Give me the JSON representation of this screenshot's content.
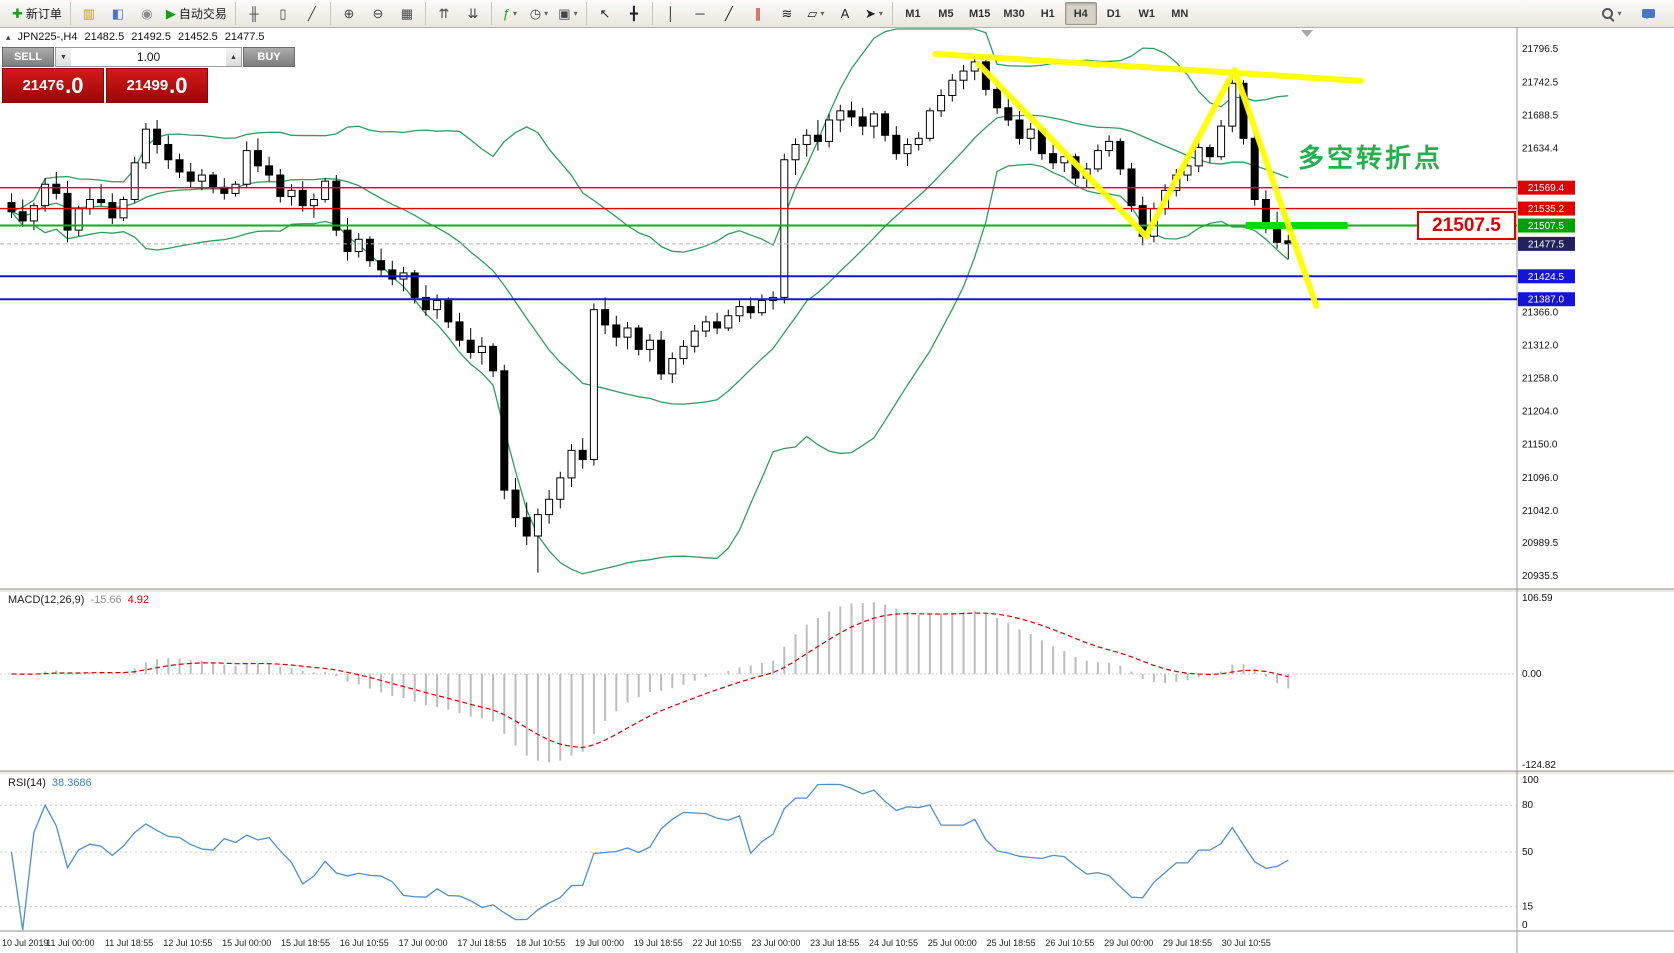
{
  "toolbar": {
    "groups": [
      {
        "items": [
          {
            "name": "new-order-button",
            "glyph": "✚",
            "color": "#18a018",
            "label": "新订单"
          }
        ]
      },
      {
        "items": [
          {
            "name": "charts-button",
            "glyph": "▥",
            "color": "#c8961e"
          },
          {
            "name": "profiles-button",
            "glyph": "◧",
            "color": "#4a76c8"
          },
          {
            "name": "alerts-button",
            "glyph": "◉",
            "color": "#8a8a8a"
          },
          {
            "name": "autotrading-button",
            "glyph": "▶",
            "color": "#18a018",
            "label": "自动交易"
          }
        ]
      },
      {
        "items": [
          {
            "name": "chart-bars-button",
            "glyph": "╫",
            "color": "#444"
          },
          {
            "name": "chart-candles-button",
            "glyph": "▯",
            "color": "#444"
          },
          {
            "name": "chart-line-button",
            "glyph": "╱",
            "color": "#444"
          }
        ]
      },
      {
        "items": [
          {
            "name": "zoom-in-button",
            "glyph": "⊕",
            "color": "#444"
          },
          {
            "name": "zoom-out-button",
            "glyph": "⊖",
            "color": "#444"
          },
          {
            "name": "tile-windows-button",
            "glyph": "▦",
            "color": "#444"
          }
        ]
      },
      {
        "items": [
          {
            "name": "arrange-up-button",
            "glyph": "⇈",
            "color": "#444"
          },
          {
            "name": "arrange-down-button",
            "glyph": "⇊",
            "color": "#444"
          }
        ]
      },
      {
        "items": [
          {
            "name": "indicators-button",
            "glyph": "ƒ",
            "color": "#18a018",
            "dropdown": true
          },
          {
            "name": "periods-button",
            "glyph": "◷",
            "color": "#444",
            "dropdown": true
          },
          {
            "name": "templates-button",
            "glyph": "▣",
            "color": "#444",
            "dropdown": true
          }
        ]
      },
      {
        "items": [
          {
            "name": "cursor-button",
            "glyph": "↖",
            "color": "#222"
          },
          {
            "name": "crosshair-button",
            "glyph": "╋",
            "color": "#222"
          }
        ]
      },
      {
        "items": [
          {
            "name": "vertical-line-button",
            "glyph": "│",
            "color": "#222"
          },
          {
            "name": "horizontal-line-button",
            "glyph": "─",
            "color": "#222"
          },
          {
            "name": "trendline-button",
            "glyph": "╱",
            "color": "#222"
          },
          {
            "name": "channel-button",
            "glyph": "∥",
            "color": "#b00000"
          },
          {
            "name": "fibonacci-button",
            "glyph": "≋",
            "color": "#222"
          },
          {
            "name": "shapes-button",
            "glyph": "▱",
            "color": "#222",
            "dropdown": true
          },
          {
            "name": "text-button",
            "glyph": "A",
            "color": "#222"
          },
          {
            "name": "arrows-button",
            "glyph": "➤",
            "color": "#222",
            "dropdown": true
          }
        ]
      }
    ],
    "timeframes": [
      "M1",
      "M5",
      "M15",
      "M30",
      "H1",
      "H4",
      "D1",
      "W1",
      "MN"
    ],
    "active_timeframe": "H4"
  },
  "chart_header": {
    "symbol_period": "JPN225-,H4",
    "open": "21482.5",
    "high": "21492.5",
    "low": "21452.5",
    "close": "21477.5"
  },
  "trade_panel": {
    "sell_label": "SELL",
    "buy_label": "BUY",
    "volume": "1.00",
    "sell_price_int": "21476",
    "sell_price_frac": ".0",
    "buy_price_int": "21499",
    "buy_price_frac": ".0"
  },
  "annotations": {
    "turning_point_text": "多空转折点",
    "price_box_label": "21507.5"
  },
  "chart_data": {
    "type": "candlestick",
    "title": "JPN225-,H4",
    "price_range": [
      20915,
      21832
    ],
    "y_axis_ticks": [
      21796.5,
      21742.5,
      21688.5,
      21634.4,
      21366.0,
      21312.0,
      21258.0,
      21204.0,
      21150.0,
      21096.0,
      21042.0,
      20989.5,
      20935.5
    ],
    "h_lines": [
      {
        "price": 21569.4,
        "color": "#e00000",
        "width": 1.4,
        "tag_color": "#e00000"
      },
      {
        "price": 21535.2,
        "color": "#e00000",
        "width": 1.4,
        "tag_color": "#e00000"
      },
      {
        "price": 21507.5,
        "color": "#00b400",
        "width": 2,
        "tag_color": "#00a000"
      },
      {
        "price": 21477.5,
        "color": "#b0b0b0",
        "width": 1,
        "dash": true,
        "tag_color": "#20215e"
      },
      {
        "price": 21424.5,
        "color": "#1515d8",
        "width": 2,
        "tag_color": "#1515d8"
      },
      {
        "price": 21387.0,
        "color": "#1515d8",
        "width": 2,
        "tag_color": "#1515d8"
      }
    ],
    "x_labels": [
      "10 Jul 2019",
      "11 Jul 00:00",
      "11 Jul 18:55",
      "12 Jul 10:55",
      "15 Jul 00:00",
      "15 Jul 18:55",
      "16 Jul 10:55",
      "17 Jul 00:00",
      "17 Jul 18:55",
      "18 Jul 10:55",
      "19 Jul 00:00",
      "19 Jul 18:55",
      "22 Jul 10:55",
      "23 Jul 00:00",
      "23 Jul 18:55",
      "24 Jul 10:55",
      "25 Jul 00:00",
      "25 Jul 18:55",
      "26 Jul 10:55",
      "29 Jul 00:00",
      "29 Jul 18:55",
      "30 Jul 10:55"
    ],
    "ohlc": [
      [
        21545,
        21560,
        21520,
        21530
      ],
      [
        21530,
        21550,
        21505,
        21515
      ],
      [
        21515,
        21545,
        21500,
        21540
      ],
      [
        21540,
        21585,
        21530,
        21575
      ],
      [
        21575,
        21595,
        21550,
        21560
      ],
      [
        21560,
        21580,
        21480,
        21500
      ],
      [
        21500,
        21540,
        21490,
        21535
      ],
      [
        21535,
        21570,
        21525,
        21550
      ],
      [
        21550,
        21575,
        21540,
        21545
      ],
      [
        21545,
        21560,
        21510,
        21520
      ],
      [
        21520,
        21555,
        21515,
        21550
      ],
      [
        21550,
        21620,
        21545,
        21610
      ],
      [
        21610,
        21675,
        21600,
        21665
      ],
      [
        21665,
        21680,
        21625,
        21640
      ],
      [
        21640,
        21655,
        21600,
        21615
      ],
      [
        21615,
        21625,
        21585,
        21595
      ],
      [
        21595,
        21610,
        21570,
        21580
      ],
      [
        21580,
        21600,
        21565,
        21590
      ],
      [
        21590,
        21595,
        21560,
        21570
      ],
      [
        21570,
        21585,
        21550,
        21560
      ],
      [
        21560,
        21580,
        21555,
        21575
      ],
      [
        21575,
        21645,
        21570,
        21630
      ],
      [
        21630,
        21650,
        21595,
        21605
      ],
      [
        21605,
        21620,
        21580,
        21590
      ],
      [
        21590,
        21600,
        21545,
        21555
      ],
      [
        21555,
        21575,
        21540,
        21565
      ],
      [
        21565,
        21580,
        21530,
        21540
      ],
      [
        21540,
        21560,
        21520,
        21550
      ],
      [
        21550,
        21585,
        21545,
        21580
      ],
      [
        21580,
        21590,
        21490,
        21500
      ],
      [
        21500,
        21520,
        21450,
        21465
      ],
      [
        21465,
        21495,
        21455,
        21485
      ],
      [
        21485,
        21490,
        21440,
        21450
      ],
      [
        21450,
        21470,
        21425,
        21435
      ],
      [
        21435,
        21450,
        21410,
        21420
      ],
      [
        21420,
        21440,
        21400,
        21430
      ],
      [
        21430,
        21435,
        21380,
        21390
      ],
      [
        21390,
        21410,
        21360,
        21370
      ],
      [
        21370,
        21395,
        21355,
        21385
      ],
      [
        21385,
        21390,
        21340,
        21350
      ],
      [
        21350,
        21365,
        21310,
        21320
      ],
      [
        21320,
        21340,
        21290,
        21300
      ],
      [
        21300,
        21325,
        21280,
        21310
      ],
      [
        21310,
        21315,
        21260,
        21270
      ],
      [
        21270,
        21280,
        21060,
        21075
      ],
      [
        21075,
        21095,
        21015,
        21030
      ],
      [
        21030,
        21055,
        20985,
        21000
      ],
      [
        21000,
        21045,
        20940,
        21035
      ],
      [
        21035,
        21075,
        21020,
        21060
      ],
      [
        21060,
        21105,
        21045,
        21095
      ],
      [
        21095,
        21150,
        21080,
        21140
      ],
      [
        21140,
        21160,
        21110,
        21125
      ],
      [
        21125,
        21380,
        21115,
        21370
      ],
      [
        21370,
        21390,
        21330,
        21345
      ],
      [
        21345,
        21360,
        21310,
        21325
      ],
      [
        21325,
        21350,
        21305,
        21340
      ],
      [
        21340,
        21345,
        21295,
        21305
      ],
      [
        21305,
        21330,
        21285,
        21320
      ],
      [
        21320,
        21335,
        21255,
        21265
      ],
      [
        21265,
        21300,
        21250,
        21290
      ],
      [
        21290,
        21320,
        21280,
        21310
      ],
      [
        21310,
        21345,
        21300,
        21335
      ],
      [
        21335,
        21360,
        21325,
        21350
      ],
      [
        21350,
        21365,
        21330,
        21340
      ],
      [
        21340,
        21370,
        21335,
        21360
      ],
      [
        21360,
        21385,
        21350,
        21375
      ],
      [
        21375,
        21390,
        21355,
        21365
      ],
      [
        21365,
        21395,
        21360,
        21385
      ],
      [
        21385,
        21400,
        21370,
        21390
      ],
      [
        21390,
        21625,
        21380,
        21615
      ],
      [
        21615,
        21650,
        21590,
        21640
      ],
      [
        21640,
        21665,
        21620,
        21655
      ],
      [
        21655,
        21680,
        21630,
        21645
      ],
      [
        21645,
        21690,
        21635,
        21680
      ],
      [
        21680,
        21705,
        21660,
        21695
      ],
      [
        21695,
        21710,
        21670,
        21685
      ],
      [
        21685,
        21700,
        21655,
        21670
      ],
      [
        21670,
        21695,
        21650,
        21690
      ],
      [
        21690,
        21695,
        21645,
        21655
      ],
      [
        21655,
        21670,
        21615,
        21625
      ],
      [
        21625,
        21650,
        21605,
        21640
      ],
      [
        21640,
        21660,
        21630,
        21650
      ],
      [
        21650,
        21700,
        21645,
        21695
      ],
      [
        21695,
        21730,
        21685,
        21720
      ],
      [
        21720,
        21755,
        21710,
        21745
      ],
      [
        21745,
        21770,
        21730,
        21760
      ],
      [
        21760,
        21785,
        21745,
        21775
      ],
      [
        21775,
        21780,
        21720,
        21730
      ],
      [
        21730,
        21745,
        21690,
        21700
      ],
      [
        21700,
        21720,
        21670,
        21680
      ],
      [
        21680,
        21695,
        21640,
        21650
      ],
      [
        21650,
        21675,
        21630,
        21665
      ],
      [
        21665,
        21670,
        21615,
        21625
      ],
      [
        21625,
        21645,
        21600,
        21610
      ],
      [
        21610,
        21630,
        21595,
        21620
      ],
      [
        21620,
        21625,
        21575,
        21585
      ],
      [
        21585,
        21610,
        21570,
        21600
      ],
      [
        21600,
        21640,
        21595,
        21630
      ],
      [
        21630,
        21655,
        21620,
        21645
      ],
      [
        21645,
        21650,
        21590,
        21600
      ],
      [
        21600,
        21610,
        21530,
        21540
      ],
      [
        21540,
        21555,
        21475,
        21490
      ],
      [
        21490,
        21545,
        21480,
        21535
      ],
      [
        21535,
        21575,
        21525,
        21565
      ],
      [
        21565,
        21600,
        21555,
        21590
      ],
      [
        21590,
        21615,
        21580,
        21605
      ],
      [
        21605,
        21645,
        21595,
        21635
      ],
      [
        21635,
        21640,
        21610,
        21620
      ],
      [
        21620,
        21680,
        21615,
        21670
      ],
      [
        21670,
        21755,
        21660,
        21740
      ],
      [
        21740,
        21745,
        21640,
        21650
      ],
      [
        21650,
        21660,
        21540,
        21550
      ],
      [
        21550,
        21565,
        21495,
        21505
      ],
      [
        21505,
        21530,
        21470,
        21480
      ],
      [
        21482.5,
        21492.5,
        21452.5,
        21477.5
      ]
    ],
    "drawings": {
      "yellow_color": "#ffff00",
      "yellow_trendlines": [
        [
          [
            82.5,
            21788
          ],
          [
            120.5,
            21744
          ]
        ],
        [
          [
            86.3,
            21772
          ],
          [
            101.3,
            21490
          ],
          [
            109.2,
            21762
          ],
          [
            116.5,
            21376
          ]
        ]
      ],
      "green_segment": {
        "from_idx": 110.2,
        "to_idx": 119.3,
        "price": 21507.5,
        "color": "#00dc00"
      }
    },
    "indicators": {
      "bollinger": {
        "period": 20,
        "deviation": 2,
        "color": "#2e9e5e"
      },
      "macd": {
        "label": "MACD(12,26,9)",
        "value": "-15.66",
        "signal_value": "4.92",
        "fast": 12,
        "slow": 26,
        "signal": 9,
        "histogram_color": "#bdbdbd",
        "signal_color": "#d40000",
        "y_ticks": [
          {
            "v": 106.59,
            "label": "106.59"
          },
          {
            "v": 0,
            "label": "0.00"
          },
          {
            "v": -124.82,
            "label": "-124.82"
          }
        ]
      },
      "rsi": {
        "label": "RSI(14)",
        "value": "38.3686",
        "period": 14,
        "color": "#4a90d2",
        "levels": [
          80,
          50,
          15
        ],
        "y_ticks": [
          {
            "v": 100,
            "label": "100"
          },
          {
            "v": 80,
            "label": "80"
          },
          {
            "v": 50,
            "label": "50"
          },
          {
            "v": 15,
            "label": "15"
          },
          {
            "v": 0,
            "label": "0"
          }
        ]
      }
    }
  }
}
